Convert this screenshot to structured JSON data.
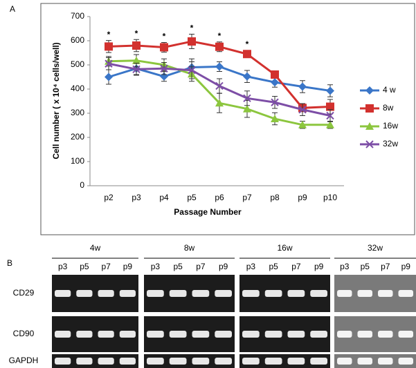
{
  "panel_labels": [
    "A",
    "B"
  ],
  "chart_data": {
    "type": "line",
    "x_label": "Passage Number",
    "y_label": "Cell number ( x 10⁴ cells/well)",
    "categories": [
      "p2",
      "p3",
      "p4",
      "p5",
      "p6",
      "p7",
      "p8",
      "p9",
      "p10"
    ],
    "ylim": [
      0,
      700
    ],
    "yticks": [
      0,
      100,
      200,
      300,
      400,
      500,
      600,
      700
    ],
    "grid": false,
    "legend": "right",
    "series": [
      {
        "name": "4 w",
        "color": "#3a76c8",
        "marker": "diamond",
        "values": [
          450,
          485,
          452,
          490,
          493,
          452,
          428,
          410,
          393
        ],
        "errors": [
          30,
          25,
          20,
          35,
          20,
          25,
          20,
          25,
          25
        ]
      },
      {
        "name": "8w",
        "color": "#d2312e",
        "marker": "square",
        "values": [
          576,
          580,
          573,
          597,
          575,
          545,
          460,
          322,
          327
        ],
        "errors": [
          25,
          25,
          20,
          30,
          20,
          15,
          15,
          15,
          30
        ]
      },
      {
        "name": "16w",
        "color": "#8cc63e",
        "marker": "triangle",
        "values": [
          515,
          518,
          500,
          462,
          342,
          318,
          277,
          252,
          252
        ],
        "errors": [
          20,
          25,
          25,
          30,
          40,
          35,
          25,
          15,
          15
        ]
      },
      {
        "name": "32w",
        "color": "#7d4ea6",
        "marker": "x",
        "values": [
          505,
          482,
          485,
          478,
          413,
          362,
          345,
          315,
          290
        ],
        "errors": [
          25,
          25,
          25,
          35,
          30,
          30,
          25,
          25,
          25
        ]
      }
    ],
    "annotations": [
      {
        "text": "*",
        "x": "p2"
      },
      {
        "text": "*",
        "x": "p3"
      },
      {
        "text": "*",
        "x": "p4"
      },
      {
        "text": "*",
        "x": "p5"
      },
      {
        "text": "*",
        "x": "p6"
      },
      {
        "text": "*",
        "x": "p7"
      }
    ]
  },
  "gel": {
    "groups": [
      "4w",
      "8w",
      "16w",
      "32w"
    ],
    "lanes": [
      "p3",
      "p5",
      "p7",
      "p9"
    ],
    "rows": [
      "CD29",
      "CD90",
      "GAPDH"
    ]
  }
}
